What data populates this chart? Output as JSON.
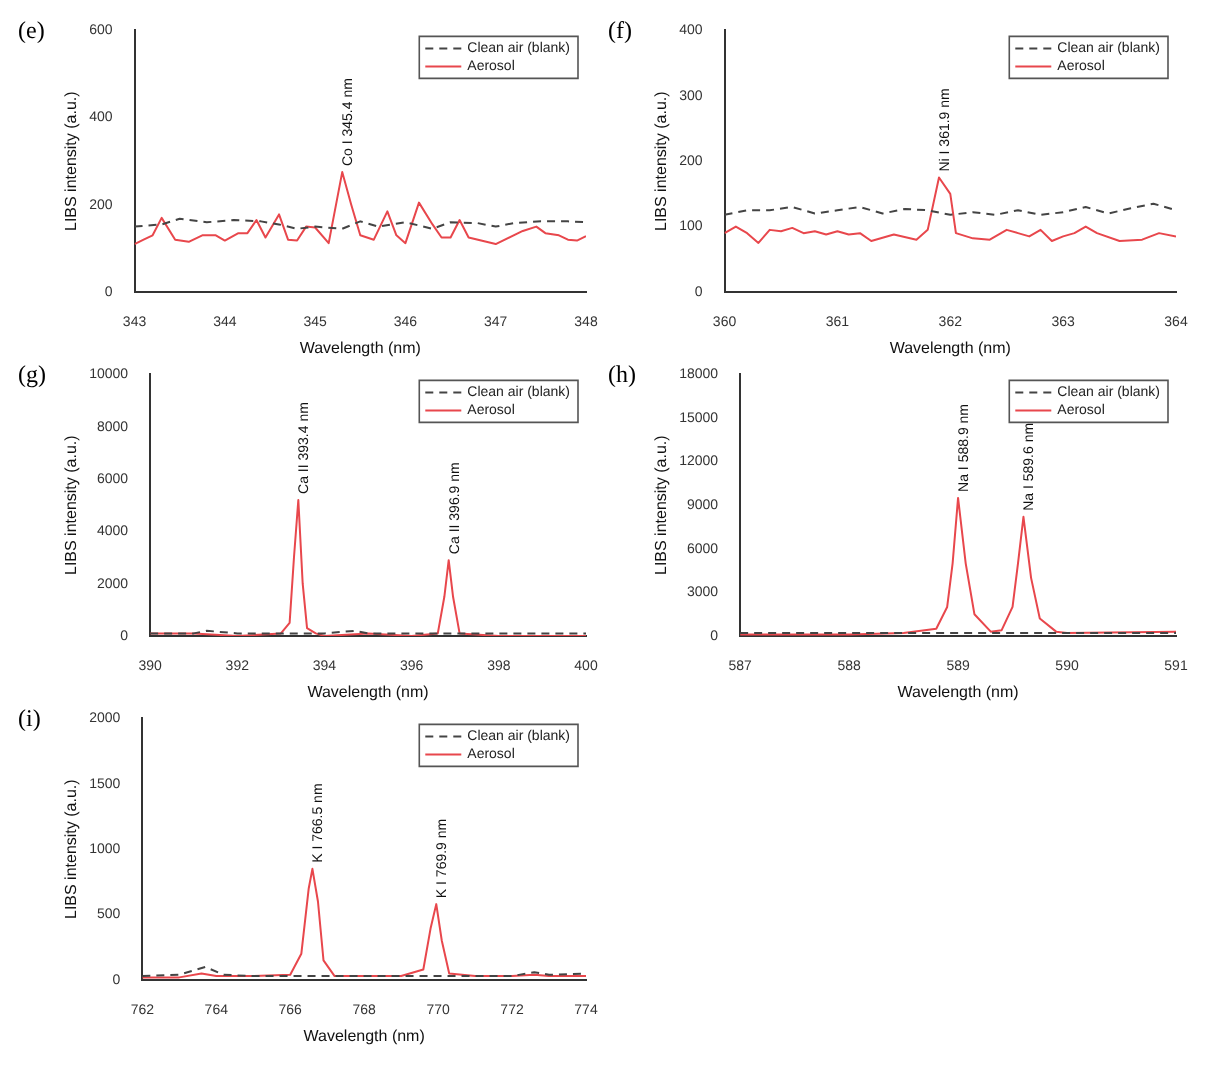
{
  "chart_data": [
    {
      "type": "line",
      "title": "(e)",
      "xlabel": "Wavelength (nm)",
      "ylabel": "LIBS intensity (a.u.)",
      "xlim": [
        343,
        348
      ],
      "xticks": [
        343,
        344,
        345,
        346,
        347,
        348
      ],
      "ylim": [
        0,
        600
      ],
      "yticks": [
        0,
        200,
        400,
        600
      ],
      "grid": false,
      "legend": "top right",
      "marker": "none",
      "series": [
        {
          "name": "Clean air (blank)",
          "color": "#444444",
          "line_style": "dashed",
          "x": [
            343,
            343.3,
            343.5,
            343.8,
            344.1,
            344.4,
            344.6,
            344.8,
            345.0,
            345.3,
            345.5,
            345.7,
            346.0,
            346.3,
            346.5,
            346.8,
            347.0,
            347.2,
            347.5,
            347.8,
            348
          ],
          "values": [
            150,
            155,
            168,
            160,
            165,
            162,
            155,
            145,
            150,
            145,
            162,
            150,
            160,
            145,
            160,
            158,
            150,
            158,
            162,
            162,
            160
          ]
        },
        {
          "name": "Aerosol",
          "color": "#e8474c",
          "line_style": "solid",
          "x": [
            343,
            343.1,
            343.2,
            343.3,
            343.45,
            343.6,
            343.75,
            343.9,
            344.0,
            344.15,
            344.25,
            344.35,
            344.45,
            344.6,
            344.7,
            344.8,
            344.9,
            345.0,
            345.15,
            345.3,
            345.4,
            345.5,
            345.65,
            345.8,
            345.9,
            346.0,
            346.15,
            346.3,
            346.4,
            346.5,
            346.6,
            346.7,
            347.0,
            347.3,
            347.45,
            347.55,
            347.7,
            347.8,
            347.9,
            348
          ],
          "values": [
            110,
            120,
            130,
            170,
            120,
            115,
            130,
            130,
            118,
            135,
            135,
            165,
            125,
            178,
            120,
            118,
            150,
            148,
            112,
            275,
            200,
            130,
            120,
            185,
            130,
            112,
            205,
            155,
            125,
            125,
            165,
            125,
            110,
            140,
            150,
            135,
            130,
            120,
            118,
            128
          ]
        }
      ],
      "annotations": [
        {
          "text": "Co I 345.4 nm",
          "x": 345.3,
          "y": 275
        }
      ]
    },
    {
      "type": "line",
      "title": "(f)",
      "xlabel": "Wavelength (nm)",
      "ylabel": "LIBS intensity (a.u.)",
      "xlim": [
        360,
        364
      ],
      "xticks": [
        360,
        361,
        362,
        363,
        364
      ],
      "ylim": [
        0,
        400
      ],
      "yticks": [
        0,
        100,
        200,
        300,
        400
      ],
      "grid": false,
      "legend": "top right",
      "marker": "none",
      "series": [
        {
          "name": "Clean air (blank)",
          "color": "#444444",
          "line_style": "dashed",
          "x": [
            360,
            360.2,
            360.4,
            360.6,
            360.8,
            361,
            361.2,
            361.4,
            361.6,
            361.8,
            362,
            362.2,
            362.4,
            362.6,
            362.8,
            363,
            363.2,
            363.4,
            363.6,
            363.8,
            364
          ],
          "values": [
            118,
            125,
            125,
            130,
            120,
            125,
            130,
            120,
            127,
            125,
            118,
            122,
            118,
            125,
            118,
            122,
            130,
            120,
            128,
            135,
            125
          ]
        },
        {
          "name": "Aerosol",
          "color": "#e8474c",
          "line_style": "solid",
          "x": [
            360,
            360.1,
            360.2,
            360.3,
            360.4,
            360.5,
            360.6,
            360.7,
            360.8,
            360.9,
            361.0,
            361.1,
            361.2,
            361.3,
            361.5,
            361.7,
            361.8,
            361.9,
            362.0,
            362.05,
            362.2,
            362.35,
            362.5,
            362.6,
            362.7,
            362.8,
            362.9,
            363.0,
            363.1,
            363.2,
            363.3,
            363.5,
            363.7,
            363.85,
            364
          ],
          "values": [
            90,
            100,
            90,
            75,
            95,
            93,
            98,
            90,
            93,
            88,
            93,
            88,
            90,
            78,
            88,
            80,
            95,
            175,
            150,
            90,
            82,
            80,
            95,
            90,
            85,
            95,
            78,
            85,
            90,
            100,
            90,
            78,
            80,
            90,
            85
          ]
        }
      ],
      "annotations": [
        {
          "text": "Ni I 361.9 nm",
          "x": 361.9,
          "y": 175
        }
      ]
    },
    {
      "type": "line",
      "title": "(g)",
      "xlabel": "Wavelength (nm)",
      "ylabel": "LIBS intensity (a.u.)",
      "xlim": [
        390,
        400
      ],
      "xticks": [
        390,
        392,
        394,
        396,
        398,
        400
      ],
      "ylim": [
        0,
        10000
      ],
      "yticks": [
        0,
        2000,
        4000,
        6000,
        8000,
        10000
      ],
      "grid": false,
      "legend": "top right",
      "marker": "none",
      "series": [
        {
          "name": "Clean air (blank)",
          "color": "#444444",
          "line_style": "dashed",
          "x": [
            390,
            391,
            391.3,
            392,
            393,
            394,
            394.7,
            395,
            396,
            397,
            398,
            399,
            400
          ],
          "values": [
            100,
            100,
            200,
            100,
            100,
            100,
            200,
            100,
            100,
            100,
            100,
            100,
            100
          ]
        },
        {
          "name": "Aerosol",
          "color": "#e8474c",
          "line_style": "solid",
          "x": [
            390,
            391,
            392,
            393,
            393.2,
            393.3,
            393.4,
            393.5,
            393.6,
            393.8,
            394,
            395,
            396,
            396.6,
            396.75,
            396.85,
            396.95,
            397.1,
            398,
            399,
            400
          ],
          "values": [
            100,
            100,
            0,
            100,
            500,
            3000,
            5200,
            2000,
            300,
            100,
            0,
            100,
            0,
            100,
            1500,
            2900,
            1500,
            100,
            0,
            0,
            0
          ]
        }
      ],
      "annotations": [
        {
          "text": "Ca II 393.4 nm",
          "x": 393.4,
          "y": 5200
        },
        {
          "text": "Ca II 396.9 nm",
          "x": 396.85,
          "y": 2900
        }
      ]
    },
    {
      "type": "line",
      "title": "(h)",
      "xlabel": "Wavelength (nm)",
      "ylabel": "LIBS intensity (a.u.)",
      "xlim": [
        587,
        591
      ],
      "xticks": [
        587,
        588,
        589,
        590,
        591
      ],
      "ylim": [
        0,
        18000
      ],
      "yticks": [
        0,
        3000,
        6000,
        9000,
        12000,
        15000,
        18000
      ],
      "grid": false,
      "legend": "top right",
      "marker": "none",
      "series": [
        {
          "name": "Clean air (blank)",
          "color": "#444444",
          "line_style": "dashed",
          "x": [
            587,
            588,
            589,
            590,
            591
          ],
          "values": [
            200,
            200,
            200,
            200,
            200
          ]
        },
        {
          "name": "Aerosol",
          "color": "#e8474c",
          "line_style": "solid",
          "x": [
            587,
            588,
            588.5,
            588.8,
            588.9,
            588.95,
            589.0,
            589.07,
            589.15,
            589.3,
            589.4,
            589.5,
            589.55,
            589.6,
            589.67,
            589.75,
            589.9,
            590,
            591
          ],
          "values": [
            100,
            100,
            200,
            500,
            2000,
            5000,
            9500,
            5000,
            1500,
            300,
            400,
            2000,
            5000,
            8200,
            4000,
            1200,
            300,
            200,
            300
          ]
        }
      ],
      "annotations": [
        {
          "text": "Na I 588.9 nm",
          "x": 589.0,
          "y": 9500
        },
        {
          "text": "Na I 589.6 nm",
          "x": 589.6,
          "y": 8200
        }
      ]
    },
    {
      "type": "line",
      "title": "(i)",
      "xlabel": "Wavelength (nm)",
      "ylabel": "LIBS intensity (a.u.)",
      "xlim": [
        762,
        774
      ],
      "xticks": [
        762,
        764,
        766,
        768,
        770,
        772,
        774
      ],
      "ylim": [
        0,
        2000
      ],
      "yticks": [
        0,
        500,
        1000,
        1500,
        2000
      ],
      "grid": false,
      "legend": "top right",
      "marker": "none",
      "series": [
        {
          "name": "Clean air (blank)",
          "color": "#444444",
          "line_style": "dashed",
          "x": [
            762,
            763,
            763.7,
            764.2,
            765,
            766,
            767,
            768,
            769,
            770,
            771,
            772,
            772.6,
            773,
            774
          ],
          "values": [
            30,
            40,
            100,
            40,
            30,
            30,
            30,
            30,
            30,
            30,
            30,
            30,
            60,
            40,
            50
          ]
        },
        {
          "name": "Aerosol",
          "color": "#e8474c",
          "line_style": "solid",
          "x": [
            762,
            763,
            763.6,
            764,
            765,
            766,
            766.3,
            766.5,
            766.6,
            766.75,
            766.9,
            767.2,
            768,
            769,
            769.6,
            769.8,
            769.95,
            770.1,
            770.3,
            771,
            772,
            772.6,
            773,
            774
          ],
          "values": [
            20,
            20,
            50,
            30,
            30,
            40,
            200,
            700,
            850,
            600,
            150,
            30,
            30,
            30,
            80,
            400,
            580,
            300,
            50,
            30,
            30,
            40,
            30,
            30
          ]
        }
      ],
      "annotations": [
        {
          "text": "K I 766.5 nm",
          "x": 766.6,
          "y": 850
        },
        {
          "text": "K I 769.9 nm",
          "x": 769.95,
          "y": 580
        }
      ]
    }
  ]
}
